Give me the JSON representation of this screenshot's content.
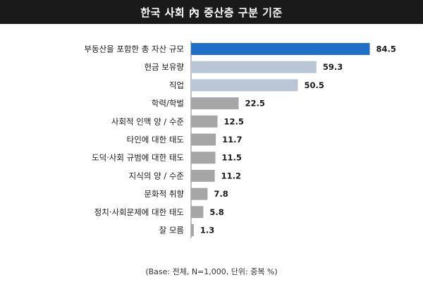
{
  "title": "한국 사회 內 중산층 구분 기준",
  "footnote": "(Base: 전체, N=1,000, 단위: 중복 %)",
  "colors": {
    "highlight": "#1f6fc6",
    "blue_gray": "#b9c6d6",
    "gray": "#a6a6a6"
  },
  "chart_data": {
    "type": "bar",
    "orientation": "horizontal",
    "title": "한국 사회 內 중산층 구분 기준",
    "xlabel": "",
    "ylabel": "",
    "xlim": [
      0,
      90
    ],
    "grid": false,
    "categories": [
      "부동산을 포함한 총 자산 규모",
      "현금 보유량",
      "직업",
      "학력/학벌",
      "사회적 인맥 양 / 수준",
      "타인에 대한 태도",
      "도덕·사회 규범에 대한 태도",
      "지식의 양 / 수준",
      "문화적 취향",
      "정치·사회문제에 대한 태도",
      "잘 모름"
    ],
    "values": [
      84.5,
      59.3,
      50.5,
      22.5,
      12.5,
      11.7,
      11.5,
      11.2,
      7.8,
      5.8,
      1.3
    ],
    "value_labels": [
      "84.5",
      "59.3",
      "50.5",
      "22.5",
      "12.5",
      "11.7",
      "11.5",
      "11.2",
      "7.8",
      "5.8",
      "1.3"
    ],
    "bar_color_groups": [
      "highlight",
      "blue_gray",
      "blue_gray",
      "gray",
      "gray",
      "gray",
      "gray",
      "gray",
      "gray",
      "gray",
      "gray"
    ]
  }
}
